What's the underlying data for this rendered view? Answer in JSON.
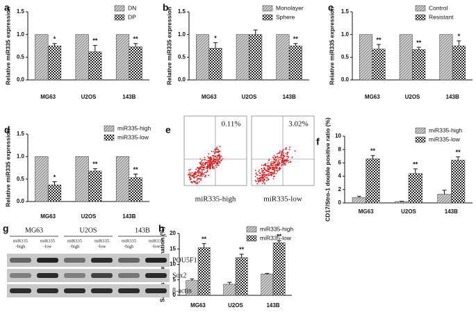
{
  "chart_data": [
    {
      "type": "bar",
      "panel": "a",
      "y_label": "Relative miR335 expression",
      "categories": [
        "MG63",
        "U2OS",
        "143B"
      ],
      "ylim": [
        0,
        1.5
      ],
      "yticks": [
        {
          "value": 0,
          "label": "0.0"
        },
        {
          "value": 0.5,
          "label": "0.5"
        },
        {
          "value": 1,
          "label": "1.0"
        },
        {
          "value": 1.5,
          "label": "1.5"
        }
      ],
      "series": [
        {
          "name": "DN",
          "color": "#8c8c8c",
          "values": [
            1,
            1,
            1
          ]
        },
        {
          "name": "DP",
          "color": "#222222",
          "values": [
            0.75,
            0.62,
            0.73
          ],
          "errors": [
            0.05,
            0.14,
            0.07
          ],
          "stars": [
            "*",
            "**",
            "**"
          ]
        }
      ]
    },
    {
      "type": "bar",
      "panel": "b",
      "y_label": "Relative miR335 expression",
      "categories": [
        "MG63",
        "U2OS",
        "143B"
      ],
      "ylim": [
        0,
        1.5
      ],
      "yticks": [
        {
          "value": 0,
          "label": "0.0"
        },
        {
          "value": 0.5,
          "label": "0.5"
        },
        {
          "value": 1,
          "label": "1.0"
        },
        {
          "value": 1.5,
          "label": "1.5"
        }
      ],
      "series": [
        {
          "name": "Monolayer",
          "color": "#8c8c8c",
          "values": [
            1,
            1,
            1
          ]
        },
        {
          "name": "Sphere",
          "color": "#222222",
          "values": [
            0.7,
            1.0,
            0.75
          ],
          "errors": [
            0.12,
            0.1,
            0.05
          ],
          "stars": [
            "*",
            null,
            "**"
          ]
        }
      ]
    },
    {
      "type": "bar",
      "panel": "c",
      "y_label": "Relative miR335 expression",
      "categories": [
        "MG63",
        "U2OS",
        "143B"
      ],
      "ylim": [
        0,
        1.5
      ],
      "yticks": [
        {
          "value": 0,
          "label": "0.0"
        },
        {
          "value": 0.5,
          "label": "0.5"
        },
        {
          "value": 1,
          "label": "1.0"
        },
        {
          "value": 1.5,
          "label": "1.5"
        }
      ],
      "series": [
        {
          "name": "Control",
          "color": "#8c8c8c",
          "values": [
            1,
            1,
            1
          ]
        },
        {
          "name": "Resistant",
          "color": "#222222",
          "values": [
            0.68,
            0.67,
            0.75
          ],
          "errors": [
            0.1,
            0.05,
            0.11
          ],
          "stars": [
            "**",
            "**",
            "*"
          ]
        }
      ]
    },
    {
      "type": "bar",
      "panel": "d",
      "y_label": "Relative miR335 expression",
      "categories": [
        "MG63",
        "U2OS",
        "143B"
      ],
      "ylim": [
        0,
        1.5
      ],
      "yticks": [
        {
          "value": 0,
          "label": "0.0"
        },
        {
          "value": 0.5,
          "label": "0.5"
        },
        {
          "value": 1,
          "label": "1.0"
        },
        {
          "value": 1.5,
          "label": "1.5"
        }
      ],
      "series": [
        {
          "name": "miR335-high",
          "color": "#8c8c8c",
          "values": [
            1,
            1,
            1
          ]
        },
        {
          "name": "miR335-low",
          "color": "#222222",
          "values": [
            0.37,
            0.68,
            0.53
          ],
          "errors": [
            0.07,
            0.05,
            0.08
          ],
          "stars": [
            "*",
            "**",
            "**"
          ]
        }
      ]
    },
    {
      "type": "bar",
      "panel": "f",
      "y_label": "CD17/Stro-1 double positive ratio (%)",
      "categories": [
        "MG63",
        "U2OS",
        "143B"
      ],
      "ylim": [
        0,
        10
      ],
      "yticks": [
        0,
        2,
        4,
        6,
        8,
        10
      ],
      "series": [
        {
          "name": "miR335-high",
          "color": "#8c8c8c",
          "values": [
            0.8,
            0.2,
            1.3
          ],
          "errors": [
            0.2,
            0.05,
            0.6
          ]
        },
        {
          "name": "miR335-low",
          "color": "#222222",
          "values": [
            6.6,
            4.4,
            6.4
          ],
          "errors": [
            0.5,
            0.7,
            0.5
          ],
          "stars": [
            "**",
            "**",
            "**"
          ]
        }
      ]
    },
    {
      "type": "bar",
      "panel": "h",
      "y_label": "Sarcosphere formation (%)",
      "categories": [
        "MG63",
        "U2OS",
        "143B"
      ],
      "ylim": [
        0,
        20
      ],
      "yticks": [
        0,
        5,
        10,
        15,
        20
      ],
      "series": [
        {
          "name": "miR335-high",
          "color": "#8c8c8c",
          "values": [
            4.8,
            3.6,
            6.9
          ],
          "errors": [
            0.5,
            0.6,
            0.2
          ]
        },
        {
          "name": "miR335-low",
          "color": "#222222",
          "values": [
            15.4,
            12.2,
            17
          ],
          "errors": [
            1.3,
            1.1,
            0.6
          ],
          "stars": [
            "**",
            "**",
            "**"
          ]
        }
      ]
    }
  ],
  "flow_panel": {
    "panel": "e",
    "plots": [
      {
        "percent": "0.11%",
        "label": "miR335-high"
      },
      {
        "percent": "3.02%",
        "label": "miR335-low"
      }
    ]
  },
  "blot_panel": {
    "panel": "g",
    "groups": [
      "MG63",
      "U2OS",
      "143B"
    ],
    "lanes": [
      [
        "miR335",
        "-high"
      ],
      [
        "miR335",
        "-low"
      ],
      [
        "miR335",
        "-high"
      ],
      [
        "miR335",
        "-low"
      ],
      [
        "miR335",
        "-high"
      ],
      [
        "miR335",
        "-low"
      ]
    ],
    "rows": [
      "POU5F1",
      "Sox2",
      "β-actin"
    ]
  }
}
